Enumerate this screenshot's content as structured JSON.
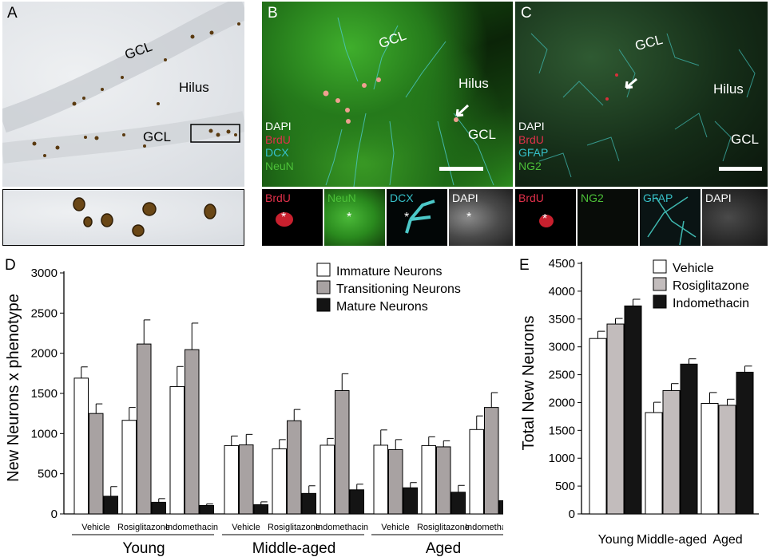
{
  "panels": {
    "a": {
      "letter": "A",
      "labels": [
        "GCL",
        "Hilus",
        "GCL"
      ]
    },
    "b": {
      "letter": "B",
      "labels": [
        "GCL",
        "Hilus",
        "GCL"
      ],
      "stains": [
        {
          "text": "DAPI",
          "color": "#ffffff"
        },
        {
          "text": "BrdU",
          "color": "#e0304a"
        },
        {
          "text": "DCX",
          "color": "#36c0c8"
        },
        {
          "text": "NeuN",
          "color": "#4cc038"
        }
      ],
      "thumbs": [
        "BrdU",
        "NeuN",
        "DCX",
        "DAPI"
      ],
      "asterisk": "*"
    },
    "c": {
      "letter": "C",
      "labels": [
        "GCL",
        "Hilus",
        "GCL"
      ],
      "stains": [
        {
          "text": "DAPI",
          "color": "#ffffff"
        },
        {
          "text": "BrdU",
          "color": "#e0304a"
        },
        {
          "text": "GFAP",
          "color": "#36c0c8"
        },
        {
          "text": "NG2",
          "color": "#4cc038"
        }
      ],
      "thumbs": [
        "BrdU",
        "NG2",
        "GFAP",
        "DAPI"
      ],
      "asterisk": "*"
    }
  },
  "chart_data": [
    {
      "panel": "D",
      "type": "bar",
      "ylabel": "New Neurons x phenotype",
      "ylim": [
        0,
        3000
      ],
      "yticks": [
        0,
        500,
        1000,
        1500,
        2000,
        2500,
        3000
      ],
      "groups": [
        "Young",
        "Middle-aged",
        "Aged"
      ],
      "categories": [
        "Vehicle",
        "Rosiglitazone",
        "Indomethacin",
        "Vehicle",
        "Rosiglitazone",
        "Indomethacin",
        "Vehicle",
        "Rosiglitazone",
        "Indomethacin"
      ],
      "series": [
        {
          "name": "Immature Neurons",
          "color": "#ffffff",
          "values": [
            1690,
            1165,
            1585,
            850,
            810,
            855,
            855,
            850,
            1050
          ],
          "errors": [
            140,
            160,
            250,
            120,
            115,
            85,
            190,
            110,
            170
          ]
        },
        {
          "name": "Transitioning Neurons",
          "color": "#a8a2a2",
          "values": [
            1250,
            2115,
            2045,
            860,
            1160,
            1535,
            800,
            835,
            1325
          ],
          "errors": [
            120,
            300,
            330,
            130,
            140,
            210,
            125,
            75,
            185
          ]
        },
        {
          "name": "Mature Neurons",
          "color": "#141414",
          "values": [
            220,
            145,
            105,
            115,
            255,
            300,
            325,
            270,
            165
          ],
          "errors": [
            120,
            45,
            20,
            35,
            95,
            70,
            65,
            85,
            20
          ]
        }
      ],
      "legend": "top-right"
    },
    {
      "panel": "E",
      "type": "bar",
      "ylabel": "Total New Neurons",
      "ylim": [
        0,
        4500
      ],
      "yticks": [
        0,
        500,
        1000,
        1500,
        2000,
        2500,
        3000,
        3500,
        4000,
        4500
      ],
      "categories": [
        "Young",
        "Middle-aged",
        "Aged"
      ],
      "series": [
        {
          "name": "Vehicle",
          "color": "#ffffff",
          "values": [
            3150,
            1820,
            1985
          ],
          "errors": [
            130,
            185,
            195
          ]
        },
        {
          "name": "Rosiglitazone",
          "color": "#c2bcbc",
          "values": [
            3410,
            2215,
            1950
          ],
          "errors": [
            100,
            125,
            110
          ]
        },
        {
          "name": "Indomethacin",
          "color": "#141414",
          "values": [
            3735,
            2690,
            2545
          ],
          "errors": [
            120,
            95,
            110
          ]
        }
      ],
      "legend": "top-left"
    }
  ]
}
